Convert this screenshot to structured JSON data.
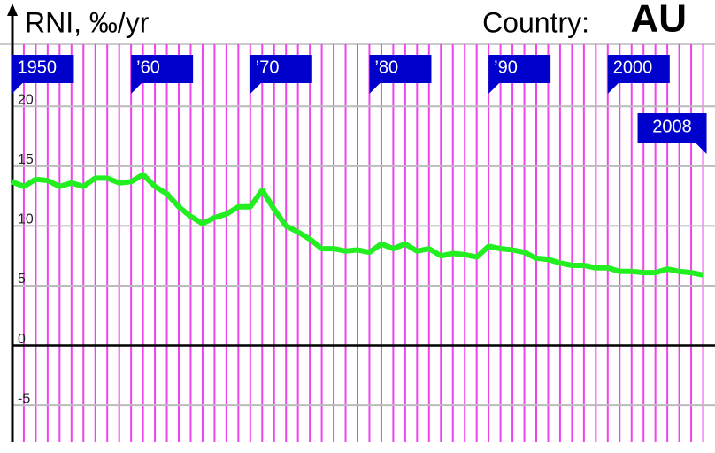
{
  "chart_data": {
    "type": "line",
    "title": "RNI, ‰/yr",
    "country_label": "Country:",
    "country": "AU",
    "x": [
      1950,
      1951,
      1952,
      1953,
      1954,
      1955,
      1956,
      1957,
      1958,
      1959,
      1960,
      1961,
      1962,
      1963,
      1964,
      1965,
      1966,
      1967,
      1968,
      1969,
      1970,
      1971,
      1972,
      1973,
      1974,
      1975,
      1976,
      1977,
      1978,
      1979,
      1980,
      1981,
      1982,
      1983,
      1984,
      1985,
      1986,
      1987,
      1988,
      1989,
      1990,
      1991,
      1992,
      1993,
      1994,
      1995,
      1996,
      1997,
      1998,
      1999,
      2000,
      2001,
      2002,
      2003,
      2004,
      2005,
      2006,
      2007,
      2008
    ],
    "series": [
      {
        "name": "AU",
        "color": "#22ee22",
        "values": [
          13.7,
          13.3,
          13.9,
          13.8,
          13.3,
          13.6,
          13.3,
          14.0,
          14.0,
          13.6,
          13.7,
          14.3,
          13.3,
          12.7,
          11.6,
          10.8,
          10.2,
          10.7,
          11.0,
          11.6,
          11.6,
          13.0,
          11.4,
          10.0,
          9.5,
          8.9,
          8.1,
          8.1,
          7.9,
          8.0,
          7.8,
          8.5,
          8.1,
          8.5,
          7.9,
          8.1,
          7.5,
          7.7,
          7.6,
          7.4,
          8.3,
          8.1,
          8.0,
          7.8,
          7.3,
          7.2,
          6.9,
          6.7,
          6.7,
          6.5,
          6.5,
          6.2,
          6.2,
          6.1,
          6.1,
          6.4,
          6.2,
          6.1,
          5.9
        ]
      }
    ],
    "xlim": [
      1949,
      2009
    ],
    "xticks": [
      {
        "value": 1950,
        "label": "1950"
      },
      {
        "value": 1960,
        "label": "’60"
      },
      {
        "value": 1970,
        "label": "’70"
      },
      {
        "value": 1980,
        "label": "’80"
      },
      {
        "value": 1990,
        "label": "’90"
      },
      {
        "value": 2000,
        "label": "2000"
      },
      {
        "value": 2008,
        "label": "2008"
      }
    ],
    "ylim": [
      -8.1,
      25.2
    ],
    "yticks": [
      -5,
      0,
      5,
      10,
      15,
      20
    ],
    "grid": true
  }
}
